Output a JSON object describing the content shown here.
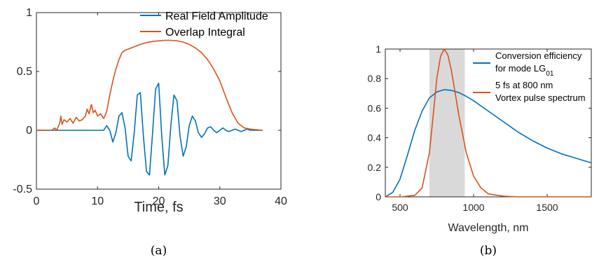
{
  "colors": {
    "blue": "#0072BD",
    "orange": "#D95319",
    "band": "#d9d9d9",
    "axis": "#262626"
  },
  "captions": [
    "(a)",
    "(b)"
  ],
  "chart_data": [
    {
      "type": "line",
      "title": "",
      "xlabel": "Time, fs",
      "ylabel": "",
      "xlim": [
        0,
        40
      ],
      "ylim": [
        -0.5,
        1
      ],
      "xticks": [
        0,
        10,
        20,
        30,
        40
      ],
      "yticks": [
        -0.5,
        0,
        0.5,
        1
      ],
      "legend_position": "top-right",
      "grid": false,
      "series": [
        {
          "name": "Real Field Amplitude",
          "color": "#0072BD",
          "x": [
            0,
            8.0,
            10.0,
            11.0,
            11.5,
            12.0,
            12.5,
            13.0,
            13.5,
            14.0,
            14.5,
            15.0,
            15.5,
            16.0,
            16.5,
            17.0,
            17.5,
            18.0,
            18.5,
            19.0,
            19.5,
            20.0,
            20.5,
            21.0,
            21.5,
            22.0,
            22.5,
            23.0,
            23.5,
            24.0,
            24.5,
            25.0,
            25.5,
            26.0,
            26.5,
            27.0,
            27.5,
            28.0,
            28.5,
            29.0,
            29.5,
            30.0,
            30.5,
            31.0,
            31.5,
            32.0,
            32.5,
            33.0,
            33.5,
            34.0,
            34.5,
            35.0,
            35.5,
            36.0,
            37.0
          ],
          "y": [
            0,
            0.0,
            0.0,
            0.0,
            0.04,
            0.0,
            -0.1,
            -0.02,
            0.12,
            0.15,
            0.02,
            -0.22,
            -0.26,
            -0.02,
            0.3,
            0.32,
            -0.05,
            -0.35,
            -0.38,
            -0.02,
            0.35,
            0.4,
            -0.05,
            -0.38,
            -0.3,
            0.05,
            0.3,
            0.25,
            -0.05,
            -0.22,
            -0.14,
            0.04,
            0.12,
            0.08,
            -0.02,
            -0.06,
            -0.03,
            0.02,
            0.03,
            0.0,
            -0.02,
            0.0,
            0.02,
            0.0,
            -0.01,
            0.0,
            0.01,
            0.0,
            -0.01,
            0.0,
            0.01,
            0.0,
            0.0,
            0.0,
            0.0
          ]
        },
        {
          "name": "Overlap Integral",
          "color": "#D95319",
          "x": [
            0,
            2.5,
            3.0,
            3.3,
            3.8,
            4.0,
            4.2,
            4.5,
            5.0,
            5.5,
            6.0,
            6.5,
            7.0,
            7.5,
            8.0,
            8.3,
            8.6,
            9.0,
            9.3,
            9.6,
            10.0,
            10.5,
            11.0,
            11.5,
            12.0,
            12.5,
            13.0,
            13.5,
            14.0,
            14.5,
            15.0,
            16.0,
            17.0,
            18.0,
            19.0,
            20.0,
            21.0,
            22.0,
            23.0,
            24.0,
            25.0,
            26.0,
            27.0,
            28.0,
            29.0,
            30.0,
            31.0,
            32.0,
            33.0,
            34.0,
            35.0,
            36.0,
            37.0
          ],
          "y": [
            0,
            0.0,
            0.02,
            0.0,
            0.06,
            0.12,
            0.05,
            0.09,
            0.07,
            0.1,
            0.06,
            0.11,
            0.08,
            0.09,
            0.12,
            0.18,
            0.14,
            0.22,
            0.15,
            0.17,
            0.12,
            0.14,
            0.1,
            0.16,
            0.3,
            0.42,
            0.52,
            0.6,
            0.66,
            0.68,
            0.69,
            0.71,
            0.73,
            0.745,
            0.755,
            0.76,
            0.765,
            0.765,
            0.76,
            0.75,
            0.73,
            0.7,
            0.66,
            0.6,
            0.52,
            0.42,
            0.28,
            0.15,
            0.06,
            0.02,
            0.01,
            0.005,
            0.0
          ]
        }
      ]
    },
    {
      "type": "line",
      "title": "",
      "xlabel": "Wavelength, nm",
      "ylabel": "",
      "xlim": [
        400,
        1800
      ],
      "ylim": [
        0,
        1
      ],
      "xticks": [
        500,
        1000,
        1500
      ],
      "yticks": [
        0,
        0.2,
        0.4,
        0.6,
        0.8,
        1
      ],
      "legend_position": "top-right",
      "grid": false,
      "shaded_band": {
        "x": [
          700,
          940
        ],
        "color": "#d9d9d9"
      },
      "series": [
        {
          "name": "Conversion efficiency for mode LG",
          "name_subscript": "01",
          "color": "#0072BD",
          "x": [
            400,
            450,
            500,
            550,
            600,
            650,
            700,
            750,
            800,
            850,
            900,
            950,
            1000,
            1100,
            1200,
            1300,
            1400,
            1500,
            1600,
            1700,
            1800
          ],
          "y": [
            0.0,
            0.03,
            0.12,
            0.28,
            0.45,
            0.58,
            0.67,
            0.71,
            0.725,
            0.72,
            0.705,
            0.68,
            0.65,
            0.58,
            0.51,
            0.44,
            0.38,
            0.33,
            0.29,
            0.26,
            0.23
          ]
        },
        {
          "name": "5 fs at 800 nm",
          "name_line2": "Vortex pulse spectrum",
          "color": "#D95319",
          "x": [
            400,
            500,
            600,
            650,
            700,
            725,
            750,
            775,
            800,
            825,
            850,
            875,
            900,
            950,
            1000,
            1050,
            1100,
            1200,
            1300,
            1500,
            1800
          ],
          "y": [
            0.0,
            0.0,
            0.01,
            0.06,
            0.3,
            0.55,
            0.8,
            0.95,
            1.0,
            0.96,
            0.85,
            0.7,
            0.55,
            0.3,
            0.14,
            0.06,
            0.02,
            0.005,
            0.0,
            0.0,
            0.0
          ]
        }
      ]
    }
  ]
}
